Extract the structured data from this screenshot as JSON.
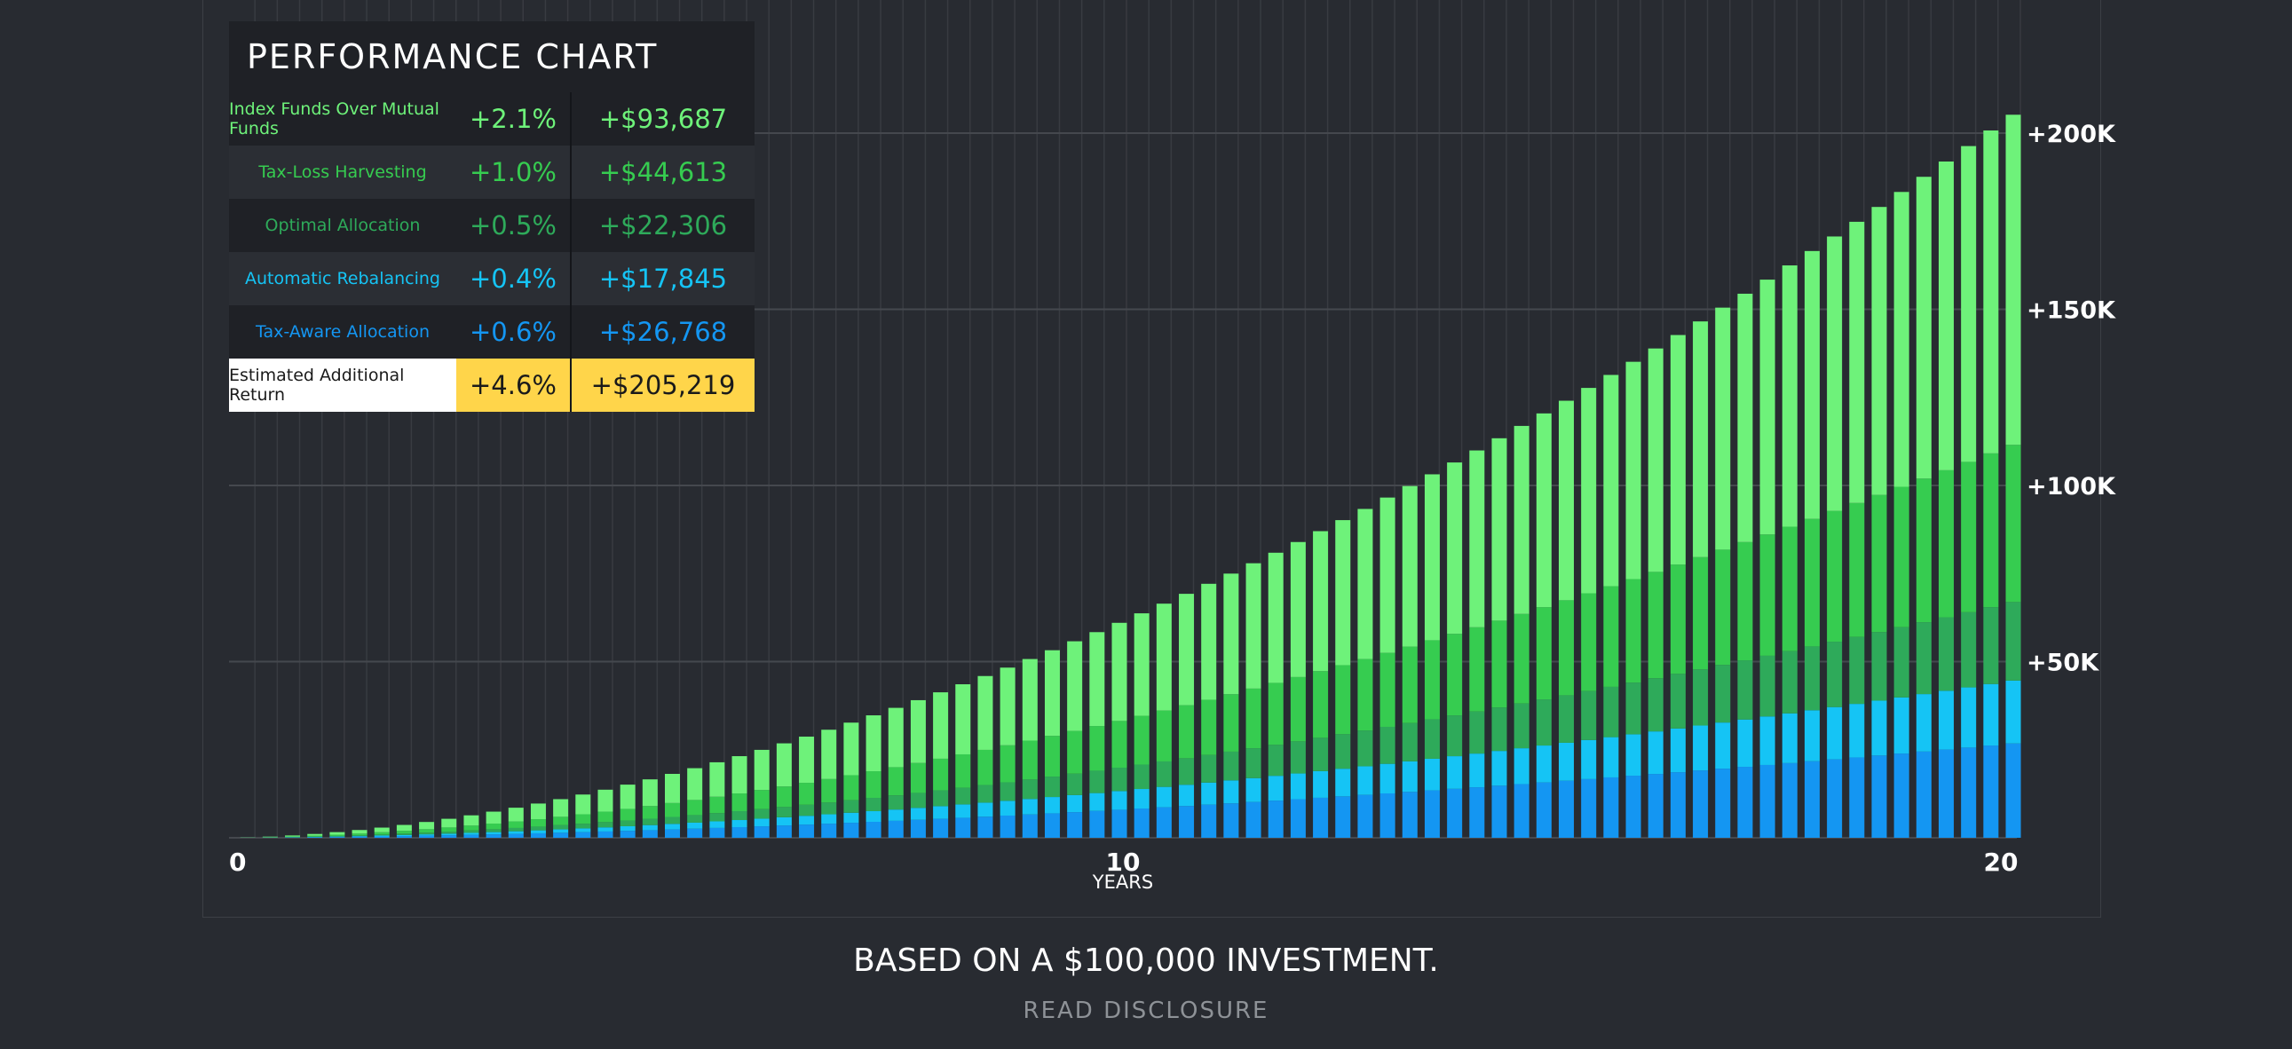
{
  "chart_data": {
    "type": "bar",
    "stacked": true,
    "xlabel": "YEARS",
    "x_ticks": [
      "0",
      "10",
      "20"
    ],
    "y_ticks": [
      "+50K",
      "+100K",
      "+150K",
      "+200K"
    ],
    "ylim": [
      0,
      200000
    ],
    "xlim": [
      0,
      20
    ],
    "years": [
      0.25,
      0.5,
      0.75,
      1,
      1.25,
      1.5,
      1.75,
      2,
      2.25,
      2.5,
      2.75,
      3,
      3.25,
      3.5,
      3.75,
      4,
      4.25,
      4.5,
      4.75,
      5,
      5.25,
      5.5,
      5.75,
      6,
      6.25,
      6.5,
      6.75,
      7,
      7.25,
      7.5,
      7.75,
      8,
      8.25,
      8.5,
      8.75,
      9,
      9.25,
      9.5,
      9.75,
      10,
      10.25,
      10.5,
      10.75,
      11,
      11.25,
      11.5,
      11.75,
      12,
      12.25,
      12.5,
      12.75,
      13,
      13.25,
      13.5,
      13.75,
      14,
      14.25,
      14.5,
      14.75,
      15,
      15.25,
      15.5,
      15.75,
      16,
      16.25,
      16.5,
      16.75,
      17,
      17.25,
      17.5,
      17.75,
      18,
      18.25,
      18.5,
      18.75,
      19,
      19.25,
      19.5,
      19.75,
      20
    ],
    "series": [
      {
        "name": "Tax-Aware Allocation",
        "color": "#1496f2",
        "final_value": 26768
      },
      {
        "name": "Automatic Rebalancing",
        "color": "#15c4f5",
        "final_value": 17845
      },
      {
        "name": "Optimal Allocation",
        "color": "#2eaa5a",
        "final_value": 22306
      },
      {
        "name": "Tax-Loss Harvesting",
        "color": "#36cc50",
        "final_value": 44613
      },
      {
        "name": "Index Funds Over Mutual Funds",
        "color": "#6ef27a",
        "final_value": 93687
      }
    ]
  },
  "table": {
    "title": "PERFORMANCE CHART",
    "rows": [
      {
        "name": "Index Funds Over Mutual Funds",
        "pct": "+2.1%",
        "value": "+$93,687",
        "color": "#6ef27a"
      },
      {
        "name": "Tax-Loss Harvesting",
        "pct": "+1.0%",
        "value": "+$44,613",
        "color": "#36cc50"
      },
      {
        "name": "Optimal Allocation",
        "pct": "+0.5%",
        "value": "+$22,306",
        "color": "#2eaa5a"
      },
      {
        "name": "Automatic Rebalancing",
        "pct": "+0.4%",
        "value": "+$17,845",
        "color": "#15c4f5"
      },
      {
        "name": "Tax-Aware Allocation",
        "pct": "+0.6%",
        "value": "+$26,768",
        "color": "#1496f2"
      }
    ],
    "total": {
      "name": "Estimated Additional Return",
      "pct": "+4.6%",
      "value": "+$205,219"
    }
  },
  "footer": {
    "main": "BASED ON A $100,000 INVESTMENT.",
    "link": "READ DISCLOSURE"
  }
}
